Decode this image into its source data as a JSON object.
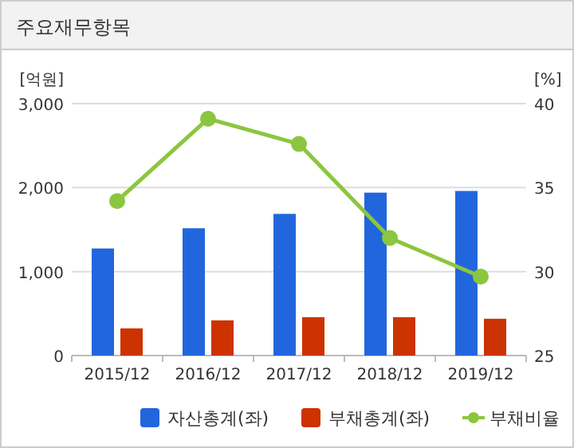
{
  "chart_data": {
    "type": "bar",
    "title": "주요재무항목",
    "ylabel": "[억원]",
    "y2label": "[%]",
    "categories": [
      "2015/12",
      "2016/12",
      "2017/12",
      "2018/12",
      "2019/12"
    ],
    "series": [
      {
        "name": "자산총계(좌)",
        "color": "#2266dd",
        "values": [
          1275,
          1516,
          1687,
          1940,
          1960
        ]
      },
      {
        "name": "부채총계(좌)",
        "color": "#cc3300",
        "values": [
          323,
          419,
          457,
          457,
          438
        ]
      },
      {
        "name": "부채비율",
        "type": "line",
        "axis": "y2",
        "color": "#8cc63f",
        "marker": "circle",
        "values": [
          34.2,
          39.1,
          37.6,
          32.0,
          29.7
        ]
      }
    ],
    "ylim": [
      0,
      3000
    ],
    "yticks": [
      {
        "value": 0,
        "label": "0"
      },
      {
        "value": 1000,
        "label": "1,000"
      },
      {
        "value": 2000,
        "label": "2,000"
      },
      {
        "value": 3000,
        "label": "3,000"
      }
    ],
    "y2lim": [
      25,
      40
    ],
    "y2ticks": [
      25,
      30,
      35,
      40
    ],
    "grid": "y",
    "legend": "bottom"
  }
}
